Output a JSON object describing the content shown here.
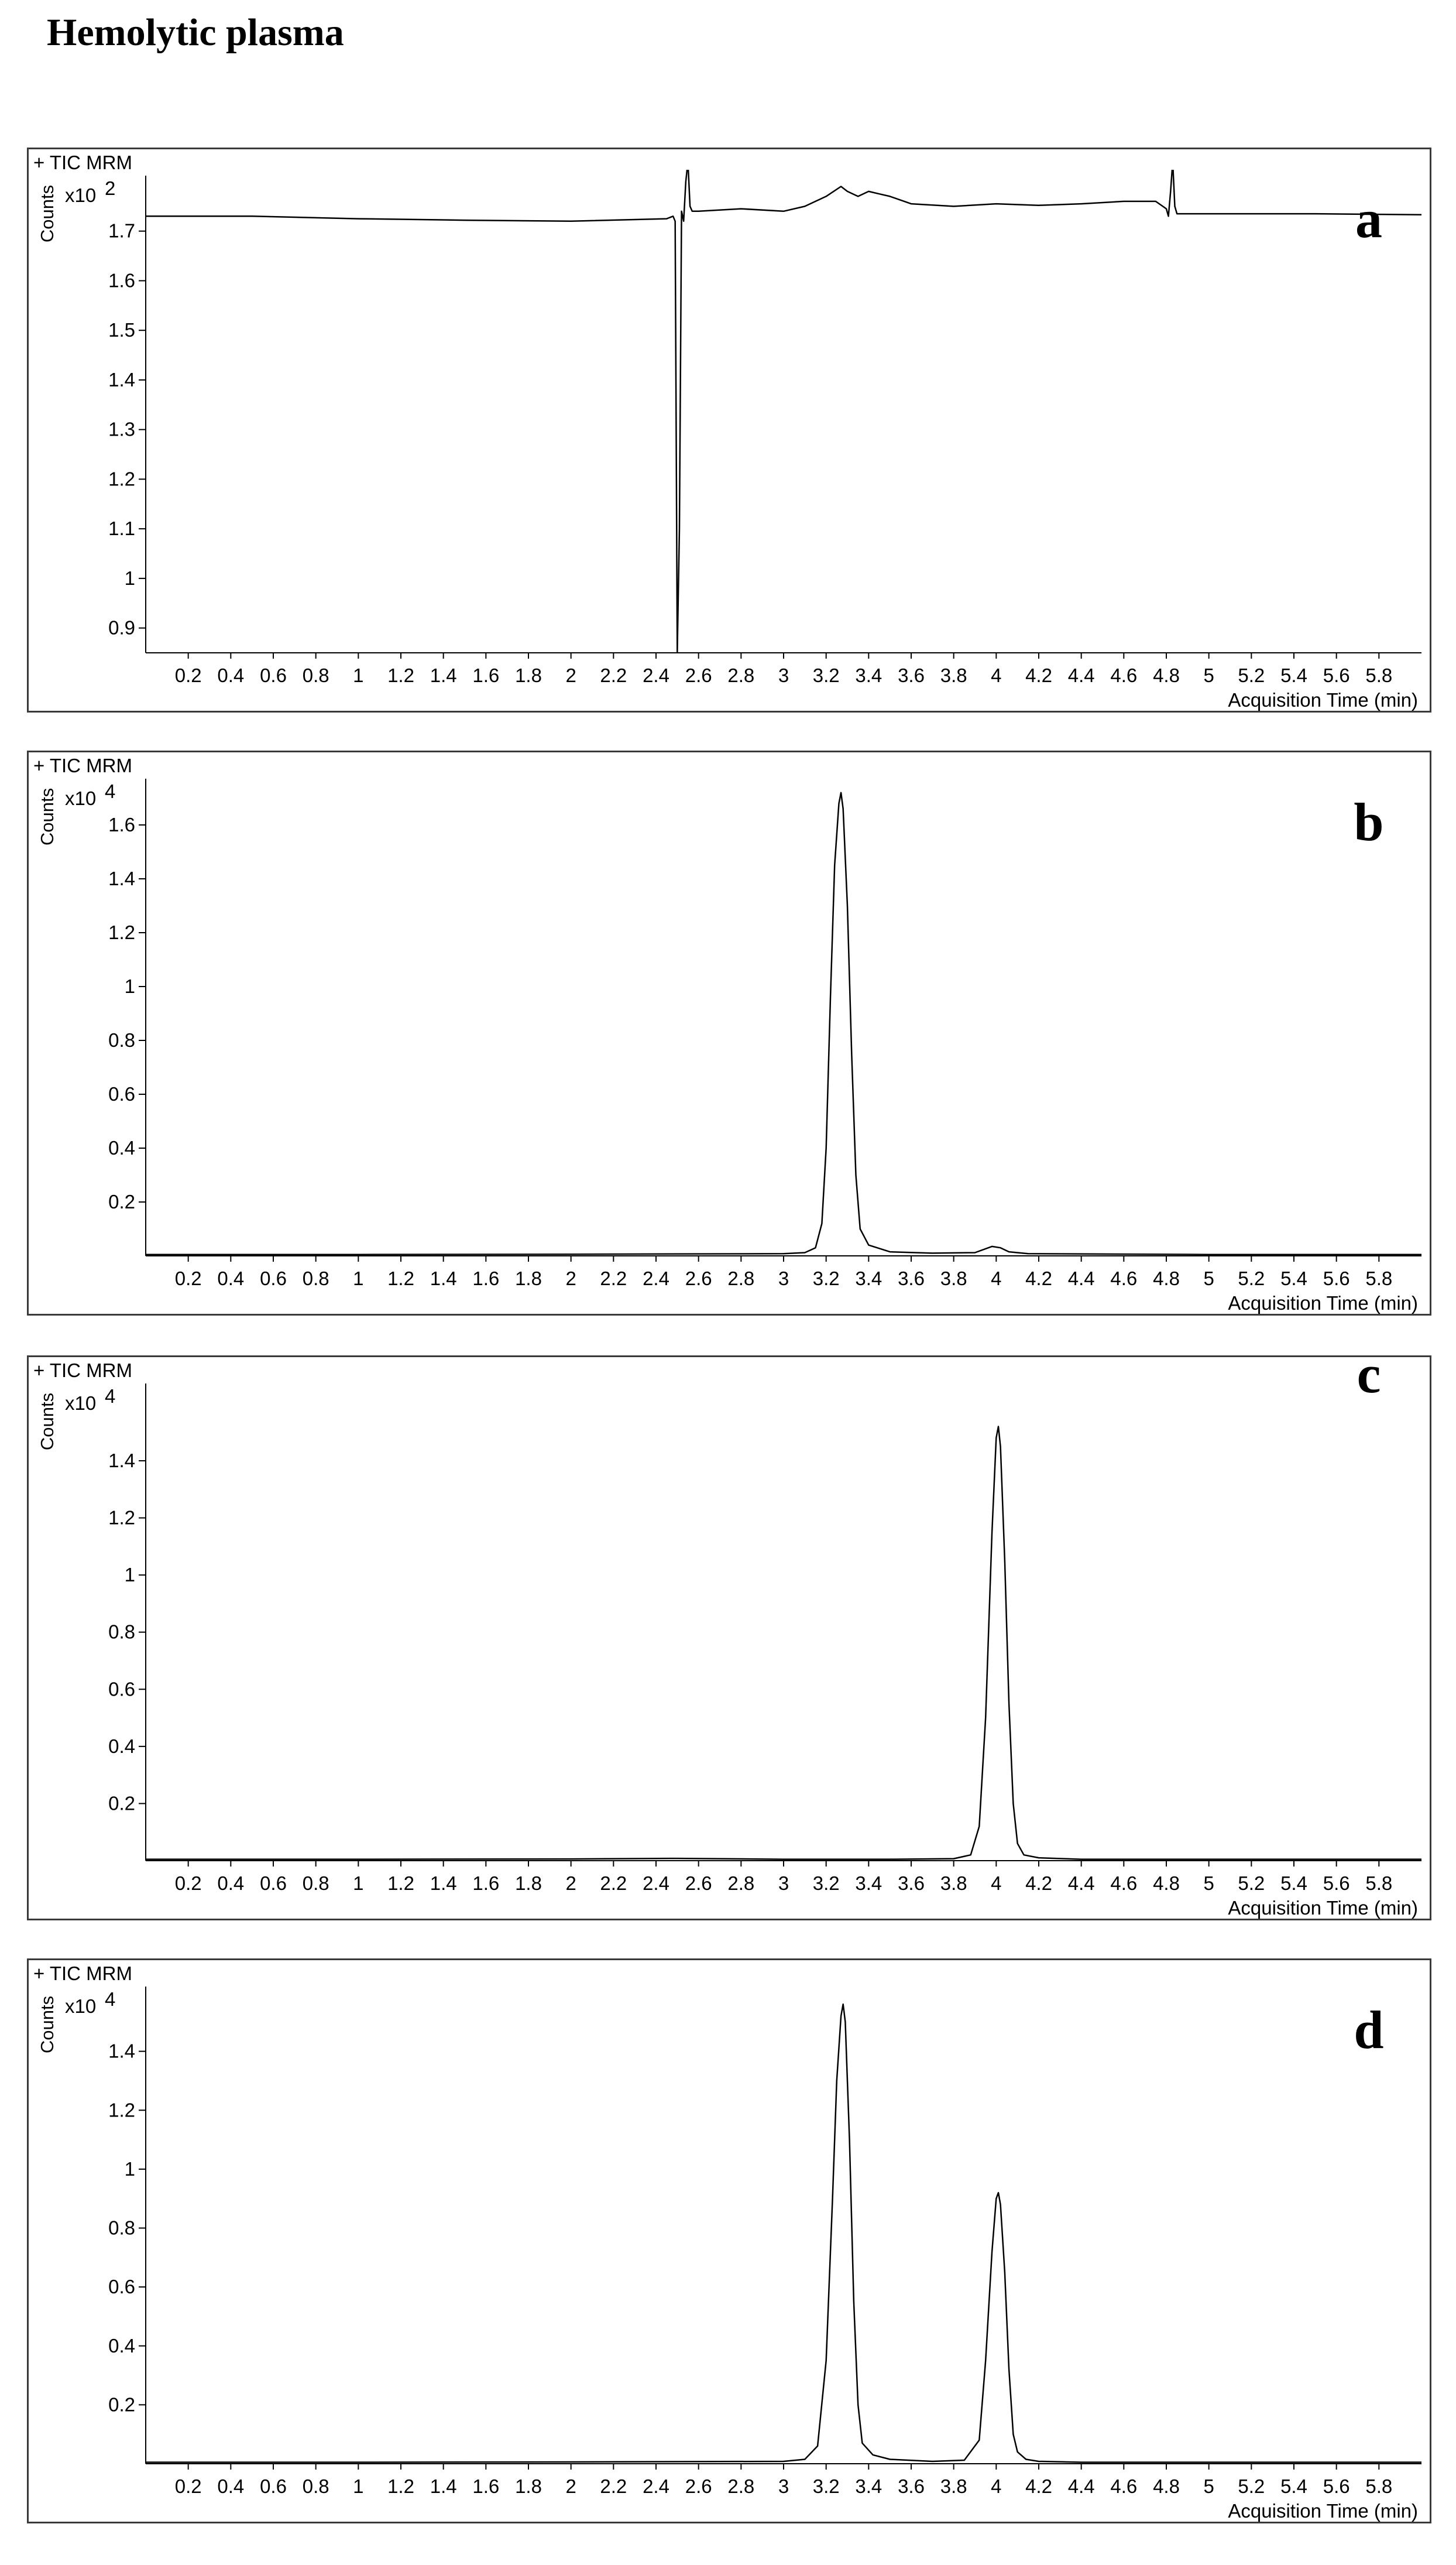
{
  "page_title": "Hemolytic plasma",
  "chart_data": [
    {
      "type": "line",
      "panel_label": "a",
      "title": "+ TIC MRM",
      "ylabel": "Counts",
      "y_multiplier": "x10",
      "y_exponent": "2",
      "xlabel": "Acquisition Time (min)",
      "xlim": [
        0,
        6.0
      ],
      "ylim": [
        0.85,
        1.8
      ],
      "xticks": [
        "0.2",
        "0.4",
        "0.6",
        "0.8",
        "1",
        "1.2",
        "1.4",
        "1.6",
        "1.8",
        "2",
        "2.2",
        "2.4",
        "2.6",
        "2.8",
        "3",
        "3.2",
        "3.4",
        "3.6",
        "3.8",
        "4",
        "4.2",
        "4.4",
        "4.6",
        "4.8",
        "5",
        "5.2",
        "5.4",
        "5.6",
        "5.8"
      ],
      "yticks": [
        "0.9",
        "1",
        "1.1",
        "1.2",
        "1.3",
        "1.4",
        "1.5",
        "1.6",
        "1.7"
      ],
      "series": [
        {
          "x": [
            0.0,
            0.5,
            1.0,
            1.5,
            2.0,
            2.45,
            2.48,
            2.49,
            2.5,
            2.51,
            2.52,
            2.53,
            2.54,
            2.55,
            2.56,
            2.57,
            2.6,
            2.8,
            3.0,
            3.1,
            3.2,
            3.27,
            3.3,
            3.35,
            3.4,
            3.45,
            3.5,
            3.6,
            3.8,
            4.0,
            4.2,
            4.4,
            4.6,
            4.75,
            4.8,
            4.81,
            4.82,
            4.83,
            4.84,
            4.85,
            5.0,
            5.5,
            6.0
          ],
          "values": [
            1.73,
            1.73,
            1.725,
            1.722,
            1.72,
            1.725,
            1.73,
            1.72,
            0.85,
            1.1,
            1.74,
            1.72,
            1.8,
            1.84,
            1.75,
            1.74,
            1.74,
            1.745,
            1.74,
            1.75,
            1.77,
            1.79,
            1.78,
            1.77,
            1.78,
            1.775,
            1.77,
            1.755,
            1.75,
            1.755,
            1.752,
            1.755,
            1.76,
            1.76,
            1.745,
            1.73,
            1.78,
            1.84,
            1.75,
            1.735,
            1.735,
            1.735,
            1.733
          ]
        }
      ]
    },
    {
      "type": "line",
      "panel_label": "b",
      "title": "+ TIC MRM",
      "ylabel": "Counts",
      "y_multiplier": "x10",
      "y_exponent": "4",
      "xlabel": "Acquisition Time (min)",
      "xlim": [
        0,
        6.0
      ],
      "ylim": [
        0,
        1.75
      ],
      "xticks": [
        "0.2",
        "0.4",
        "0.6",
        "0.8",
        "1",
        "1.2",
        "1.4",
        "1.6",
        "1.8",
        "2",
        "2.2",
        "2.4",
        "2.6",
        "2.8",
        "3",
        "3.2",
        "3.4",
        "3.6",
        "3.8",
        "4",
        "4.2",
        "4.4",
        "4.6",
        "4.8",
        "5",
        "5.2",
        "5.4",
        "5.6",
        "5.8"
      ],
      "yticks": [
        "0.2",
        "0.4",
        "0.6",
        "0.8",
        "1",
        "1.2",
        "1.4",
        "1.6"
      ],
      "series": [
        {
          "x": [
            0.0,
            1.0,
            2.0,
            3.0,
            3.1,
            3.15,
            3.18,
            3.2,
            3.22,
            3.24,
            3.26,
            3.27,
            3.28,
            3.3,
            3.32,
            3.34,
            3.36,
            3.4,
            3.5,
            3.7,
            3.9,
            3.98,
            4.02,
            4.06,
            4.15,
            5.0,
            6.0
          ],
          "values": [
            0.005,
            0.005,
            0.006,
            0.008,
            0.012,
            0.03,
            0.12,
            0.4,
            0.95,
            1.45,
            1.68,
            1.72,
            1.66,
            1.3,
            0.75,
            0.3,
            0.1,
            0.04,
            0.015,
            0.01,
            0.012,
            0.035,
            0.03,
            0.015,
            0.008,
            0.005,
            0.005
          ]
        }
      ]
    },
    {
      "type": "line",
      "panel_label": "c",
      "title": "+ TIC MRM",
      "ylabel": "Counts",
      "y_multiplier": "x10",
      "y_exponent": "4",
      "xlabel": "Acquisition Time (min)",
      "xlim": [
        0,
        6.0
      ],
      "ylim": [
        0,
        1.65
      ],
      "xticks": [
        "0.2",
        "0.4",
        "0.6",
        "0.8",
        "1",
        "1.2",
        "1.4",
        "1.6",
        "1.8",
        "2",
        "2.2",
        "2.4",
        "2.6",
        "2.8",
        "3",
        "3.2",
        "3.4",
        "3.6",
        "3.8",
        "4",
        "4.2",
        "4.4",
        "4.6",
        "4.8",
        "5",
        "5.2",
        "5.4",
        "5.6",
        "5.8"
      ],
      "yticks": [
        "0.2",
        "0.4",
        "0.6",
        "0.8",
        "1",
        "1.2",
        "1.4"
      ],
      "series": [
        {
          "x": [
            0.0,
            1.0,
            2.0,
            2.5,
            3.0,
            3.5,
            3.8,
            3.88,
            3.92,
            3.95,
            3.98,
            4.0,
            4.01,
            4.02,
            4.04,
            4.06,
            4.08,
            4.1,
            4.13,
            4.2,
            4.4,
            5.0,
            6.0
          ],
          "values": [
            0.005,
            0.005,
            0.006,
            0.008,
            0.005,
            0.005,
            0.007,
            0.02,
            0.12,
            0.5,
            1.15,
            1.48,
            1.52,
            1.45,
            1.05,
            0.55,
            0.2,
            0.06,
            0.02,
            0.01,
            0.005,
            0.005,
            0.005
          ]
        }
      ]
    },
    {
      "type": "line",
      "panel_label": "d",
      "title": "+ TIC MRM",
      "ylabel": "Counts",
      "y_multiplier": "x10",
      "y_exponent": "4",
      "xlabel": "Acquisition Time (min)",
      "xlim": [
        0,
        6.0
      ],
      "ylim": [
        0,
        1.6
      ],
      "xticks": [
        "0.2",
        "0.4",
        "0.6",
        "0.8",
        "1",
        "1.2",
        "1.4",
        "1.6",
        "1.8",
        "2",
        "2.2",
        "2.4",
        "2.6",
        "2.8",
        "3",
        "3.2",
        "3.4",
        "3.6",
        "3.8",
        "4",
        "4.2",
        "4.4",
        "4.6",
        "4.8",
        "5",
        "5.2",
        "5.4",
        "5.6",
        "5.8"
      ],
      "yticks": [
        "0.2",
        "0.4",
        "0.6",
        "0.8",
        "1",
        "1.2",
        "1.4"
      ],
      "series": [
        {
          "x": [
            0.0,
            1.0,
            2.0,
            3.0,
            3.1,
            3.16,
            3.2,
            3.23,
            3.25,
            3.27,
            3.28,
            3.29,
            3.31,
            3.33,
            3.35,
            3.37,
            3.42,
            3.5,
            3.7,
            3.85,
            3.92,
            3.95,
            3.98,
            4.0,
            4.01,
            4.02,
            4.04,
            4.06,
            4.08,
            4.1,
            4.14,
            4.2,
            4.4,
            5.0,
            6.0
          ],
          "values": [
            0.005,
            0.005,
            0.006,
            0.008,
            0.015,
            0.06,
            0.35,
            0.9,
            1.3,
            1.52,
            1.56,
            1.5,
            1.1,
            0.55,
            0.2,
            0.07,
            0.03,
            0.015,
            0.008,
            0.012,
            0.08,
            0.35,
            0.72,
            0.9,
            0.92,
            0.88,
            0.65,
            0.32,
            0.1,
            0.04,
            0.015,
            0.008,
            0.005,
            0.005,
            0.005
          ]
        }
      ]
    }
  ]
}
